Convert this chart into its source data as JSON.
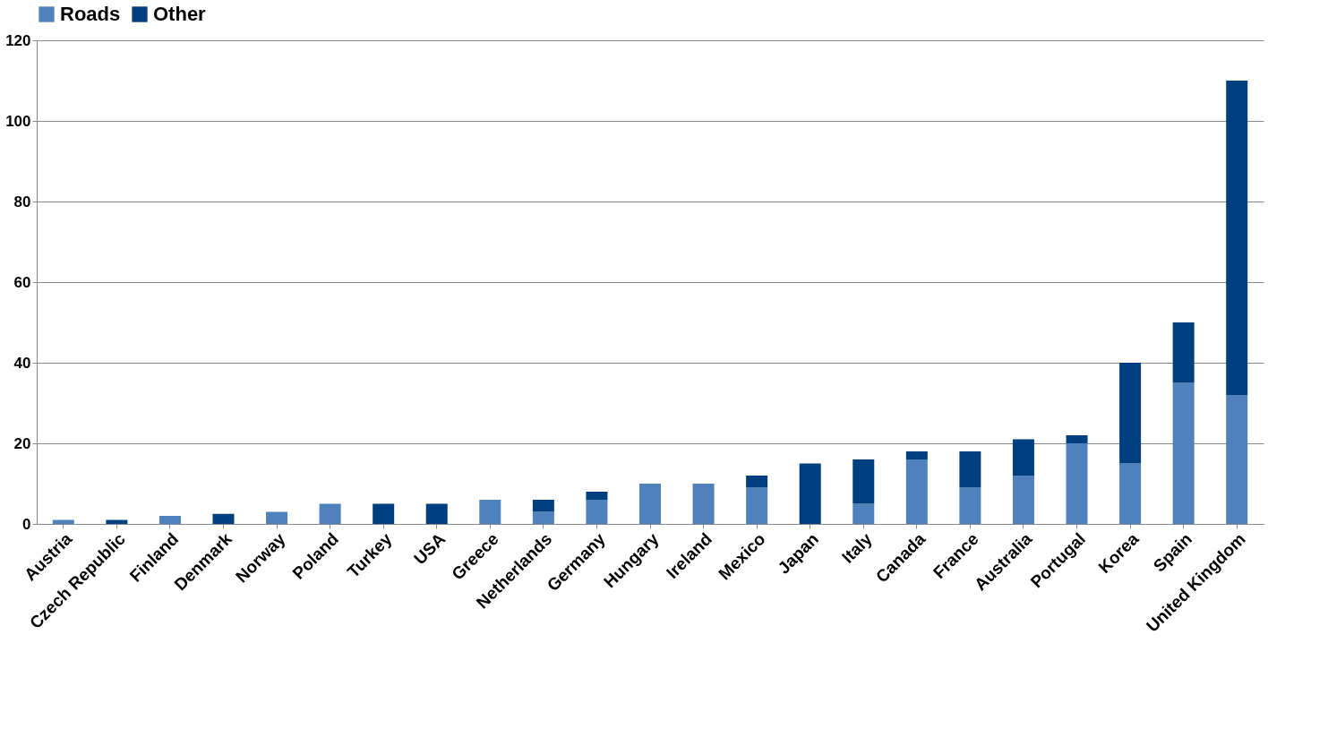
{
  "chart_data": {
    "type": "bar",
    "stacked": true,
    "categories": [
      "Austria",
      "Czech Republic",
      "Finland",
      "Denmark",
      "Norway",
      "Poland",
      "Turkey",
      "USA",
      "Greece",
      "Netherlands",
      "Germany",
      "Hungary",
      "Ireland",
      "Mexico",
      "Japan",
      "Italy",
      "Canada",
      "France",
      "Australia",
      "Portugal",
      "Korea",
      "Spain",
      "United Kingdom"
    ],
    "series": [
      {
        "name": "Roads",
        "color": "#4f81bd",
        "values": [
          1,
          null,
          2,
          null,
          3,
          5,
          null,
          null,
          6,
          3,
          6,
          10,
          10,
          9,
          null,
          5,
          16,
          9,
          12,
          20,
          15,
          35,
          32
        ]
      },
      {
        "name": "Other",
        "color": "#003f7f",
        "values": [
          null,
          1,
          null,
          2.5,
          null,
          null,
          5,
          5,
          null,
          3,
          2,
          null,
          null,
          3,
          15,
          11,
          2,
          9,
          9,
          2,
          25,
          15,
          78
        ]
      }
    ],
    "ylim": [
      0,
      120
    ],
    "yticks": [
      0,
      20,
      40,
      60,
      80,
      100,
      120
    ],
    "grid": "y",
    "legend": "top"
  }
}
